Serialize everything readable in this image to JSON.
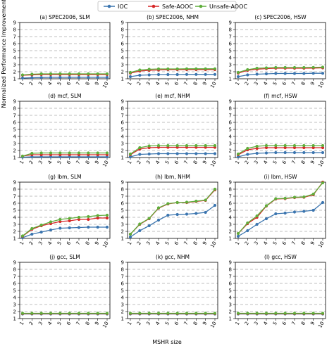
{
  "figure": {
    "legend": [
      {
        "name": "IOC",
        "color": "#3b75af"
      },
      {
        "name": "Safe-AOOC",
        "color": "#d62728"
      },
      {
        "name": "Unsafe-AOOC",
        "color": "#5fae3c"
      }
    ],
    "ylabel": "Normalized Performance Improvement (%)",
    "xlabel": "MSHR size"
  },
  "chart_data": [
    {
      "type": "line",
      "title": "(a) SPEC2006, SLM",
      "x": [
        1,
        2,
        3,
        4,
        5,
        6,
        7,
        8,
        9,
        10
      ],
      "ylim": [
        1,
        9
      ],
      "yticks": [
        1,
        2,
        3,
        4,
        5,
        6,
        7,
        8,
        9
      ],
      "grid": true,
      "series": [
        {
          "name": "IOC",
          "values": [
            1.1,
            1.15,
            1.18,
            1.2,
            1.2,
            1.2,
            1.2,
            1.2,
            1.2,
            1.2
          ]
        },
        {
          "name": "Safe-AOOC",
          "values": [
            1.5,
            1.55,
            1.6,
            1.6,
            1.6,
            1.6,
            1.6,
            1.6,
            1.6,
            1.6
          ]
        },
        {
          "name": "Unsafe-AOOC",
          "values": [
            1.55,
            1.65,
            1.7,
            1.7,
            1.7,
            1.7,
            1.7,
            1.7,
            1.7,
            1.7
          ]
        }
      ]
    },
    {
      "type": "line",
      "title": "(b) SPEC2006, NHM",
      "x": [
        1,
        2,
        3,
        4,
        5,
        6,
        7,
        8,
        9,
        10
      ],
      "ylim": [
        1,
        9
      ],
      "yticks": [
        1,
        2,
        3,
        4,
        5,
        6,
        7,
        8,
        9
      ],
      "grid": true,
      "series": [
        {
          "name": "IOC",
          "values": [
            1.3,
            1.5,
            1.55,
            1.6,
            1.6,
            1.6,
            1.62,
            1.62,
            1.62,
            1.62
          ]
        },
        {
          "name": "Safe-AOOC",
          "values": [
            1.8,
            2.1,
            2.2,
            2.25,
            2.3,
            2.3,
            2.3,
            2.3,
            2.3,
            2.3
          ]
        },
        {
          "name": "Unsafe-AOOC",
          "values": [
            1.9,
            2.25,
            2.35,
            2.4,
            2.4,
            2.4,
            2.42,
            2.42,
            2.42,
            2.42
          ]
        }
      ]
    },
    {
      "type": "line",
      "title": "(c) SPEC2006, HSW",
      "x": [
        1,
        2,
        3,
        4,
        5,
        6,
        7,
        8,
        9,
        10
      ],
      "ylim": [
        1,
        9
      ],
      "yticks": [
        1,
        2,
        3,
        4,
        5,
        6,
        7,
        8,
        9
      ],
      "grid": true,
      "series": [
        {
          "name": "IOC",
          "values": [
            1.3,
            1.55,
            1.65,
            1.7,
            1.75,
            1.75,
            1.75,
            1.75,
            1.78,
            1.78
          ]
        },
        {
          "name": "Safe-AOOC",
          "values": [
            1.8,
            2.2,
            2.35,
            2.45,
            2.5,
            2.5,
            2.5,
            2.5,
            2.52,
            2.55
          ]
        },
        {
          "name": "Unsafe-AOOC",
          "values": [
            1.9,
            2.3,
            2.5,
            2.55,
            2.6,
            2.6,
            2.6,
            2.6,
            2.62,
            2.65
          ]
        }
      ]
    },
    {
      "type": "line",
      "title": "(d) mcf, SLM",
      "x": [
        1,
        2,
        3,
        4,
        5,
        6,
        7,
        8,
        9,
        10
      ],
      "ylim": [
        1,
        9
      ],
      "yticks": [
        1,
        2,
        3,
        4,
        5,
        6,
        7,
        8,
        9
      ],
      "grid": true,
      "series": [
        {
          "name": "IOC",
          "values": [
            1.05,
            1.1,
            1.1,
            1.1,
            1.1,
            1.1,
            1.1,
            1.1,
            1.1,
            1.1
          ]
        },
        {
          "name": "Safe-AOOC",
          "values": [
            1.2,
            1.4,
            1.4,
            1.4,
            1.4,
            1.4,
            1.4,
            1.4,
            1.4,
            1.4
          ]
        },
        {
          "name": "Unsafe-AOOC",
          "values": [
            1.2,
            1.6,
            1.65,
            1.65,
            1.65,
            1.65,
            1.65,
            1.65,
            1.65,
            1.65
          ]
        }
      ]
    },
    {
      "type": "line",
      "title": "(e) mcf, NHM",
      "x": [
        1,
        2,
        3,
        4,
        5,
        6,
        7,
        8,
        9,
        10
      ],
      "ylim": [
        1,
        9
      ],
      "yticks": [
        1,
        2,
        3,
        4,
        5,
        6,
        7,
        8,
        9
      ],
      "grid": true,
      "series": [
        {
          "name": "IOC",
          "values": [
            1.1,
            1.45,
            1.5,
            1.55,
            1.55,
            1.55,
            1.55,
            1.55,
            1.55,
            1.55
          ]
        },
        {
          "name": "Safe-AOOC",
          "values": [
            1.4,
            2.2,
            2.4,
            2.45,
            2.45,
            2.45,
            2.45,
            2.45,
            2.45,
            2.45
          ]
        },
        {
          "name": "Unsafe-AOOC",
          "values": [
            1.5,
            2.4,
            2.65,
            2.7,
            2.7,
            2.7,
            2.7,
            2.7,
            2.7,
            2.7
          ]
        }
      ]
    },
    {
      "type": "line",
      "title": "(f) mcf, HSW",
      "x": [
        1,
        2,
        3,
        4,
        5,
        6,
        7,
        8,
        9,
        10
      ],
      "ylim": [
        1,
        9
      ],
      "yticks": [
        1,
        2,
        3,
        4,
        5,
        6,
        7,
        8,
        9
      ],
      "grid": true,
      "series": [
        {
          "name": "IOC",
          "values": [
            1.1,
            1.45,
            1.6,
            1.65,
            1.7,
            1.7,
            1.7,
            1.7,
            1.7,
            1.7
          ]
        },
        {
          "name": "Safe-AOOC",
          "values": [
            1.4,
            2.1,
            2.3,
            2.4,
            2.4,
            2.4,
            2.4,
            2.4,
            2.4,
            2.4
          ]
        },
        {
          "name": "Unsafe-AOOC",
          "values": [
            1.5,
            2.3,
            2.6,
            2.7,
            2.7,
            2.7,
            2.7,
            2.7,
            2.7,
            2.7
          ]
        }
      ]
    },
    {
      "type": "line",
      "title": "(g) lbm, SLM",
      "x": [
        1,
        2,
        3,
        4,
        5,
        6,
        7,
        8,
        9,
        10
      ],
      "ylim": [
        1,
        9
      ],
      "yticks": [
        1,
        2,
        3,
        4,
        5,
        6,
        7,
        8,
        9
      ],
      "grid": true,
      "series": [
        {
          "name": "IOC",
          "values": [
            1.1,
            1.6,
            1.9,
            2.2,
            2.45,
            2.5,
            2.55,
            2.6,
            2.6,
            2.6
          ]
        },
        {
          "name": "Safe-AOOC",
          "values": [
            1.3,
            2.3,
            2.8,
            3.1,
            3.4,
            3.5,
            3.7,
            3.7,
            3.9,
            3.9
          ]
        },
        {
          "name": "Unsafe-AOOC",
          "values": [
            1.35,
            2.4,
            2.9,
            3.35,
            3.7,
            3.85,
            4.0,
            4.1,
            4.25,
            4.3
          ]
        }
      ]
    },
    {
      "type": "line",
      "title": "(h) lbm, NHM",
      "x": [
        1,
        2,
        3,
        4,
        5,
        6,
        7,
        8,
        9,
        10
      ],
      "ylim": [
        1,
        9
      ],
      "yticks": [
        1,
        2,
        3,
        4,
        5,
        6,
        7,
        8,
        9
      ],
      "grid": true,
      "series": [
        {
          "name": "IOC",
          "values": [
            1.2,
            2.1,
            2.8,
            3.6,
            4.3,
            4.4,
            4.45,
            4.55,
            4.7,
            5.7
          ]
        },
        {
          "name": "Safe-AOOC",
          "values": [
            1.6,
            3.0,
            3.8,
            5.3,
            5.9,
            6.1,
            6.1,
            6.25,
            6.4,
            7.9
          ]
        },
        {
          "name": "Unsafe-AOOC",
          "values": [
            1.6,
            3.05,
            3.85,
            5.35,
            5.95,
            6.1,
            6.15,
            6.3,
            6.45,
            8.0
          ]
        }
      ]
    },
    {
      "type": "line",
      "title": "(i) lbm, HSW",
      "x": [
        1,
        2,
        3,
        4,
        5,
        6,
        7,
        8,
        9,
        10
      ],
      "ylim": [
        1,
        9
      ],
      "yticks": [
        1,
        2,
        3,
        4,
        5,
        6,
        7,
        8,
        9
      ],
      "grid": true,
      "series": [
        {
          "name": "IOC",
          "values": [
            1.3,
            2.1,
            3.0,
            3.8,
            4.5,
            4.6,
            4.75,
            4.85,
            5.0,
            6.1
          ]
        },
        {
          "name": "Safe-AOOC",
          "values": [
            1.7,
            3.1,
            4.0,
            5.6,
            6.6,
            6.65,
            6.8,
            6.85,
            7.2,
            9.0
          ]
        },
        {
          "name": "Unsafe-AOOC",
          "values": [
            1.7,
            3.2,
            4.2,
            5.65,
            6.65,
            6.7,
            6.85,
            6.9,
            7.3,
            8.9
          ]
        }
      ]
    },
    {
      "type": "line",
      "title": "(j) gcc, SLM",
      "x": [
        1,
        2,
        3,
        4,
        5,
        6,
        7,
        8,
        9,
        10
      ],
      "ylim": [
        1,
        9
      ],
      "yticks": [
        1,
        2,
        3,
        4,
        5,
        6,
        7,
        8,
        9
      ],
      "grid": true,
      "series": [
        {
          "name": "IOC",
          "values": [
            1.65,
            1.65,
            1.65,
            1.65,
            1.65,
            1.65,
            1.65,
            1.65,
            1.65,
            1.65
          ]
        },
        {
          "name": "Safe-AOOC",
          "values": [
            1.7,
            1.7,
            1.7,
            1.7,
            1.7,
            1.7,
            1.7,
            1.7,
            1.7,
            1.7
          ]
        },
        {
          "name": "Unsafe-AOOC",
          "values": [
            1.75,
            1.75,
            1.75,
            1.75,
            1.75,
            1.75,
            1.75,
            1.75,
            1.75,
            1.75
          ]
        }
      ]
    },
    {
      "type": "line",
      "title": "(k) gcc, NHM",
      "x": [
        1,
        2,
        3,
        4,
        5,
        6,
        7,
        8,
        9,
        10
      ],
      "ylim": [
        1,
        9
      ],
      "yticks": [
        1,
        2,
        3,
        4,
        5,
        6,
        7,
        8,
        9
      ],
      "grid": true,
      "series": [
        {
          "name": "IOC",
          "values": [
            1.65,
            1.65,
            1.65,
            1.65,
            1.65,
            1.65,
            1.65,
            1.65,
            1.65,
            1.65
          ]
        },
        {
          "name": "Safe-AOOC",
          "values": [
            1.7,
            1.7,
            1.7,
            1.7,
            1.7,
            1.7,
            1.7,
            1.7,
            1.7,
            1.7
          ]
        },
        {
          "name": "Unsafe-AOOC",
          "values": [
            1.75,
            1.75,
            1.75,
            1.75,
            1.75,
            1.75,
            1.75,
            1.75,
            1.75,
            1.75
          ]
        }
      ]
    },
    {
      "type": "line",
      "title": "(l) gcc, HSW",
      "x": [
        1,
        2,
        3,
        4,
        5,
        6,
        7,
        8,
        9,
        10
      ],
      "ylim": [
        1,
        9
      ],
      "yticks": [
        1,
        2,
        3,
        4,
        5,
        6,
        7,
        8,
        9
      ],
      "grid": true,
      "series": [
        {
          "name": "IOC",
          "values": [
            1.65,
            1.65,
            1.65,
            1.65,
            1.65,
            1.65,
            1.65,
            1.65,
            1.65,
            1.65
          ]
        },
        {
          "name": "Safe-AOOC",
          "values": [
            1.7,
            1.7,
            1.7,
            1.7,
            1.7,
            1.7,
            1.7,
            1.7,
            1.7,
            1.7
          ]
        },
        {
          "name": "Unsafe-AOOC",
          "values": [
            1.75,
            1.75,
            1.75,
            1.75,
            1.75,
            1.75,
            1.75,
            1.75,
            1.75,
            1.75
          ]
        }
      ]
    }
  ]
}
